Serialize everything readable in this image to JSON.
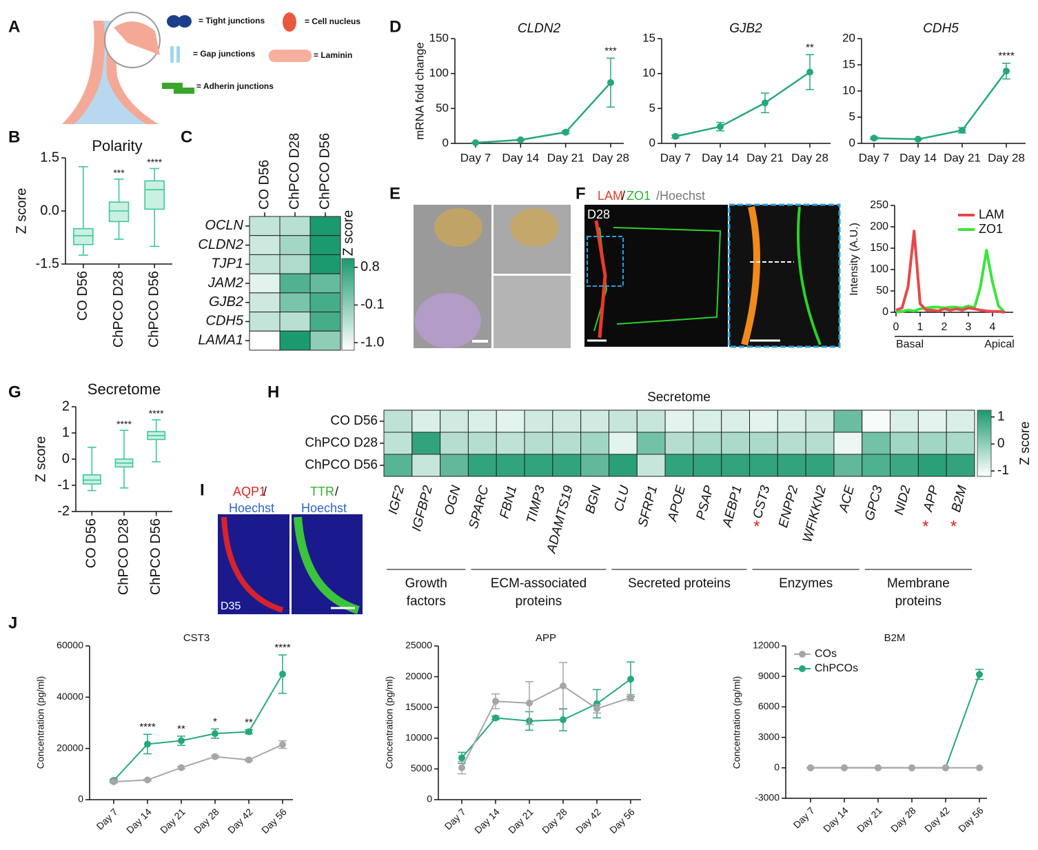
{
  "panels": [
    "A",
    "B",
    "C",
    "D",
    "E",
    "F",
    "G",
    "H",
    "I",
    "J"
  ],
  "schematic": {
    "legend": [
      "= Tight junctions",
      "= Cell nucleus",
      "= Gap junctions",
      "= Laminin",
      "= Adherin junctions"
    ]
  },
  "images": {
    "F": {
      "labels": [
        "LAM",
        "/",
        "ZO1",
        "/Hoechst"
      ],
      "stage": "D28"
    },
    "I": {
      "labels": [
        "AQP1",
        "/",
        "Hoechst",
        "TTR",
        "/",
        "Hoechst"
      ],
      "stage": "D35"
    }
  },
  "chart_data": [
    {
      "type": "box",
      "title": "Polarity",
      "ylabel": "Z score",
      "categories": [
        "CO D56",
        "ChPCO D28",
        "ChPCO D56"
      ],
      "boxes": [
        {
          "min": -1.25,
          "q1": -0.95,
          "median": -0.7,
          "q3": -0.5,
          "max": 1.25
        },
        {
          "min": -0.8,
          "q1": -0.3,
          "median": 0.0,
          "q3": 0.25,
          "max": 0.9
        },
        {
          "min": -1.0,
          "q1": 0.05,
          "median": 0.6,
          "q3": 0.85,
          "max": 1.2
        }
      ],
      "annotations": [
        null,
        "***",
        "****"
      ],
      "color": "#3cc79a",
      "fill": "#c9f0e0",
      "ylim": [
        -1.5,
        1.5
      ],
      "yticks": [
        -1.5,
        {
          "value": 0,
          "label": "0.0"
        },
        1.5
      ]
    },
    {
      "type": "heatmap",
      "zlabel": "Z score",
      "rows": [
        "OCLN",
        "CLDN2",
        "TJP1",
        "JAM2",
        "GJB2",
        "CDH5",
        "LAMA1"
      ],
      "columns": [
        "CO D56",
        "ChPCO D28",
        "ChPCO D56"
      ],
      "values": [
        [
          -0.6,
          -0.5,
          1.0
        ],
        [
          -0.7,
          -0.3,
          1.0
        ],
        [
          -0.6,
          -0.4,
          1.0
        ],
        [
          -0.9,
          0.5,
          0.3
        ],
        [
          -0.7,
          0.1,
          0.6
        ],
        [
          -0.6,
          -0.5,
          0.6
        ],
        [
          -1.18,
          1.0,
          -0.1
        ]
      ],
      "colormap": [
        "#ffffff",
        "#1b9a6e"
      ],
      "zlim": [
        -1.18,
        1.01
      ],
      "zticks": [
        0.8,
        -0.1,
        {
          "value": -1,
          "label": "-1.0"
        }
      ]
    },
    {
      "type": "line",
      "title": "CLDN2",
      "ylabel": "mRNA fold change",
      "categories": [
        "Day 7",
        "Day 14",
        "Day 21",
        "Day 28"
      ],
      "values": [
        1,
        5,
        16,
        87
      ],
      "errors": [
        0.5,
        1,
        2,
        35
      ],
      "annotations": [
        null,
        null,
        null,
        "***"
      ],
      "color": "#25a87a",
      "ylim": [
        0,
        150
      ],
      "yticks": [
        0,
        50,
        100,
        150
      ]
    },
    {
      "type": "line",
      "title": "GJB2",
      "categories": [
        "Day 7",
        "Day 14",
        "Day 21",
        "Day 28"
      ],
      "values": [
        1,
        2.4,
        5.8,
        10.2
      ],
      "errors": [
        0.2,
        0.6,
        1.4,
        2.5
      ],
      "annotations": [
        null,
        null,
        null,
        "**"
      ],
      "color": "#25a87a",
      "ylim": [
        0,
        15
      ],
      "yticks": [
        0,
        5,
        10,
        15
      ]
    },
    {
      "type": "line",
      "title": "CDH5",
      "categories": [
        "Day 7",
        "Day 14",
        "Day 21",
        "Day 28"
      ],
      "values": [
        1,
        0.8,
        2.5,
        13.8
      ],
      "errors": [
        0.2,
        0.1,
        0.5,
        1.5
      ],
      "annotations": [
        null,
        null,
        null,
        "****"
      ],
      "color": "#25a87a",
      "ylim": [
        0,
        20
      ],
      "yticks": [
        0,
        5,
        10,
        15,
        20
      ]
    },
    {
      "type": "line",
      "ylabel": "Intensity (A.U.)",
      "x_notes": [
        "Basal",
        "Apical"
      ],
      "legend": "upper-right",
      "x": [
        0,
        0.25,
        0.5,
        0.75,
        1,
        1.25,
        1.5,
        1.75,
        2,
        2.25,
        2.5,
        2.75,
        3,
        3.25,
        3.5,
        3.75,
        4,
        4.25,
        4.5
      ],
      "series": [
        {
          "name": "LAM",
          "color": "#e8474a",
          "values": [
            5,
            10,
            60,
            190,
            20,
            5,
            5,
            3,
            8,
            5,
            8,
            5,
            10,
            8,
            5,
            3,
            2,
            2,
            0
          ]
        },
        {
          "name": "ZO1",
          "color": "#39e639",
          "values": [
            0,
            2,
            5,
            3,
            8,
            10,
            12,
            12,
            10,
            12,
            12,
            10,
            15,
            10,
            60,
            145,
            70,
            15,
            0
          ]
        }
      ],
      "xlim": [
        0,
        4.5
      ],
      "xticks": [
        0,
        1,
        2,
        3,
        4
      ],
      "ylim": [
        0,
        250
      ],
      "yticks": [
        0,
        50,
        100,
        150,
        200,
        250
      ]
    },
    {
      "type": "box",
      "title": "Secretome",
      "ylabel": "Z score",
      "categories": [
        "CO D56",
        "ChPCO D28",
        "ChPCO D56"
      ],
      "boxes": [
        {
          "min": -1.2,
          "q1": -0.95,
          "median": -0.8,
          "q3": -0.6,
          "max": 0.45
        },
        {
          "min": -1.1,
          "q1": -0.3,
          "median": -0.15,
          "q3": 0.0,
          "max": 1.1
        },
        {
          "min": -0.1,
          "q1": 0.75,
          "median": 0.9,
          "q3": 1.05,
          "max": 1.5
        }
      ],
      "annotations": [
        null,
        "****",
        "****"
      ],
      "color": "#3cc79a",
      "fill": "#c9f0e0",
      "ylim": [
        -2,
        2
      ],
      "yticks": [
        -2,
        -1,
        0,
        1,
        2
      ]
    },
    {
      "type": "heatmap",
      "title": "Secretome",
      "zlabel": "Z score",
      "rows": [
        "CO D56",
        "ChPCO D28",
        "ChPCO D56"
      ],
      "columns": [
        "IGF2",
        "IGFBP2",
        "OGN",
        "SPARC",
        "FBN1",
        "TIMP3",
        "ADAMTS19",
        "BGN",
        "CLU",
        "SFRP1",
        "APOE",
        "PSAP",
        "AEBP1",
        "CST3",
        "ENPP2",
        "WFIKKN2",
        "ACE",
        "GPC3",
        "NID2",
        "APP",
        "B2M"
      ],
      "column_marks": [
        null,
        null,
        null,
        null,
        null,
        null,
        null,
        null,
        null,
        null,
        null,
        null,
        null,
        "*",
        null,
        null,
        null,
        null,
        null,
        "*",
        "*"
      ],
      "groups": [
        {
          "label": [
            "Growth",
            "factors"
          ],
          "size": 3
        },
        {
          "label": [
            "ECM-associated",
            "proteins"
          ],
          "size": 5
        },
        {
          "label": [
            "Secreted proteins"
          ],
          "size": 5
        },
        {
          "label": [
            "Enzymes"
          ],
          "size": 4
        },
        {
          "label": [
            "Membrane",
            "proteins"
          ],
          "size": 4
        }
      ],
      "values": [
        [
          -0.5,
          -0.8,
          -0.7,
          -0.8,
          -0.9,
          -0.7,
          -0.7,
          -0.7,
          -0.6,
          -0.6,
          -0.9,
          -0.8,
          -0.8,
          -0.9,
          -0.8,
          -0.7,
          0.4,
          -1.1,
          -0.8,
          -0.9,
          -0.8
        ],
        [
          -0.5,
          1.0,
          -0.4,
          -0.4,
          -0.5,
          -0.4,
          -0.4,
          -0.2,
          -0.9,
          0.3,
          -0.4,
          -0.3,
          -0.3,
          -0.3,
          -0.4,
          -0.4,
          -1.0,
          0.3,
          -0.2,
          -0.2,
          -0.3
        ],
        [
          0.6,
          -0.6,
          0.5,
          1.0,
          1.0,
          1.0,
          1.0,
          0.5,
          1.1,
          -0.6,
          1.0,
          1.0,
          1.0,
          1.0,
          1.0,
          1.0,
          0.5,
          0.7,
          0.9,
          1.1,
          1.0
        ]
      ],
      "colormap": [
        "#ffffff",
        "#1b9a6e"
      ],
      "zlim": [
        -1.2,
        1.25
      ],
      "zticks": [
        1,
        0,
        -1
      ]
    },
    {
      "type": "line",
      "title": "CST3",
      "ylabel": "Concentration (pg/ml)",
      "categories": [
        "Day 7",
        "Day 14",
        "Day 21",
        "Day 28",
        "Day 42",
        "Day 56"
      ],
      "series": [
        {
          "color": "#a6a6a6",
          "values": [
            7000,
            7700,
            12500,
            16800,
            15500,
            21500
          ],
          "errors": [
            500,
            300,
            500,
            500,
            400,
            1500
          ]
        },
        {
          "color": "#25a87a",
          "values": [
            7500,
            21700,
            23000,
            25800,
            26500,
            49000
          ],
          "errors": [
            500,
            3800,
            1800,
            1800,
            800,
            7500
          ],
          "annotations": [
            null,
            "****",
            "**",
            "*",
            "**",
            "****"
          ]
        }
      ],
      "ylim": [
        0,
        60000
      ],
      "yticks": [
        0,
        20000,
        40000,
        60000
      ]
    },
    {
      "type": "line",
      "title": "APP",
      "ylabel": "Concentration (pg/ml)",
      "categories": [
        "Day 7",
        "Day 14",
        "Day 21",
        "Day 28",
        "Day 42",
        "Day 56"
      ],
      "series": [
        {
          "color": "#a6a6a6",
          "values": [
            5200,
            16000,
            15700,
            18500,
            14800,
            16600
          ],
          "errors": [
            1000,
            1200,
            3500,
            3800,
            700,
            500
          ]
        },
        {
          "color": "#25a87a",
          "values": [
            6800,
            13300,
            12800,
            13000,
            15600,
            19600
          ],
          "errors": [
            900,
            300,
            1500,
            1800,
            2300,
            2800
          ]
        }
      ],
      "ylim": [
        0,
        25000
      ],
      "yticks": [
        0,
        5000,
        10000,
        15000,
        20000,
        25000
      ]
    },
    {
      "type": "line",
      "title": "B2M",
      "ylabel": "Concentration (pg/ml)",
      "legend": "upper-left",
      "categories": [
        "Day 7",
        "Day 14",
        "Day 21",
        "Day 28",
        "Day 42",
        "Day 56"
      ],
      "series": [
        {
          "name": "COs",
          "color": "#a6a6a6",
          "values": [
            0,
            0,
            0,
            0,
            0,
            0
          ],
          "errors": [
            0,
            0,
            0,
            0,
            0,
            0
          ]
        },
        {
          "name": "ChPCOs",
          "color": "#25a87a",
          "values": [
            0,
            0,
            0,
            0,
            0,
            9200
          ],
          "errors": [
            0,
            0,
            0,
            0,
            0,
            500
          ]
        }
      ],
      "ylim": [
        -3000,
        12000
      ],
      "yticks": [
        -3000,
        0,
        3000,
        6000,
        9000,
        12000
      ]
    }
  ]
}
